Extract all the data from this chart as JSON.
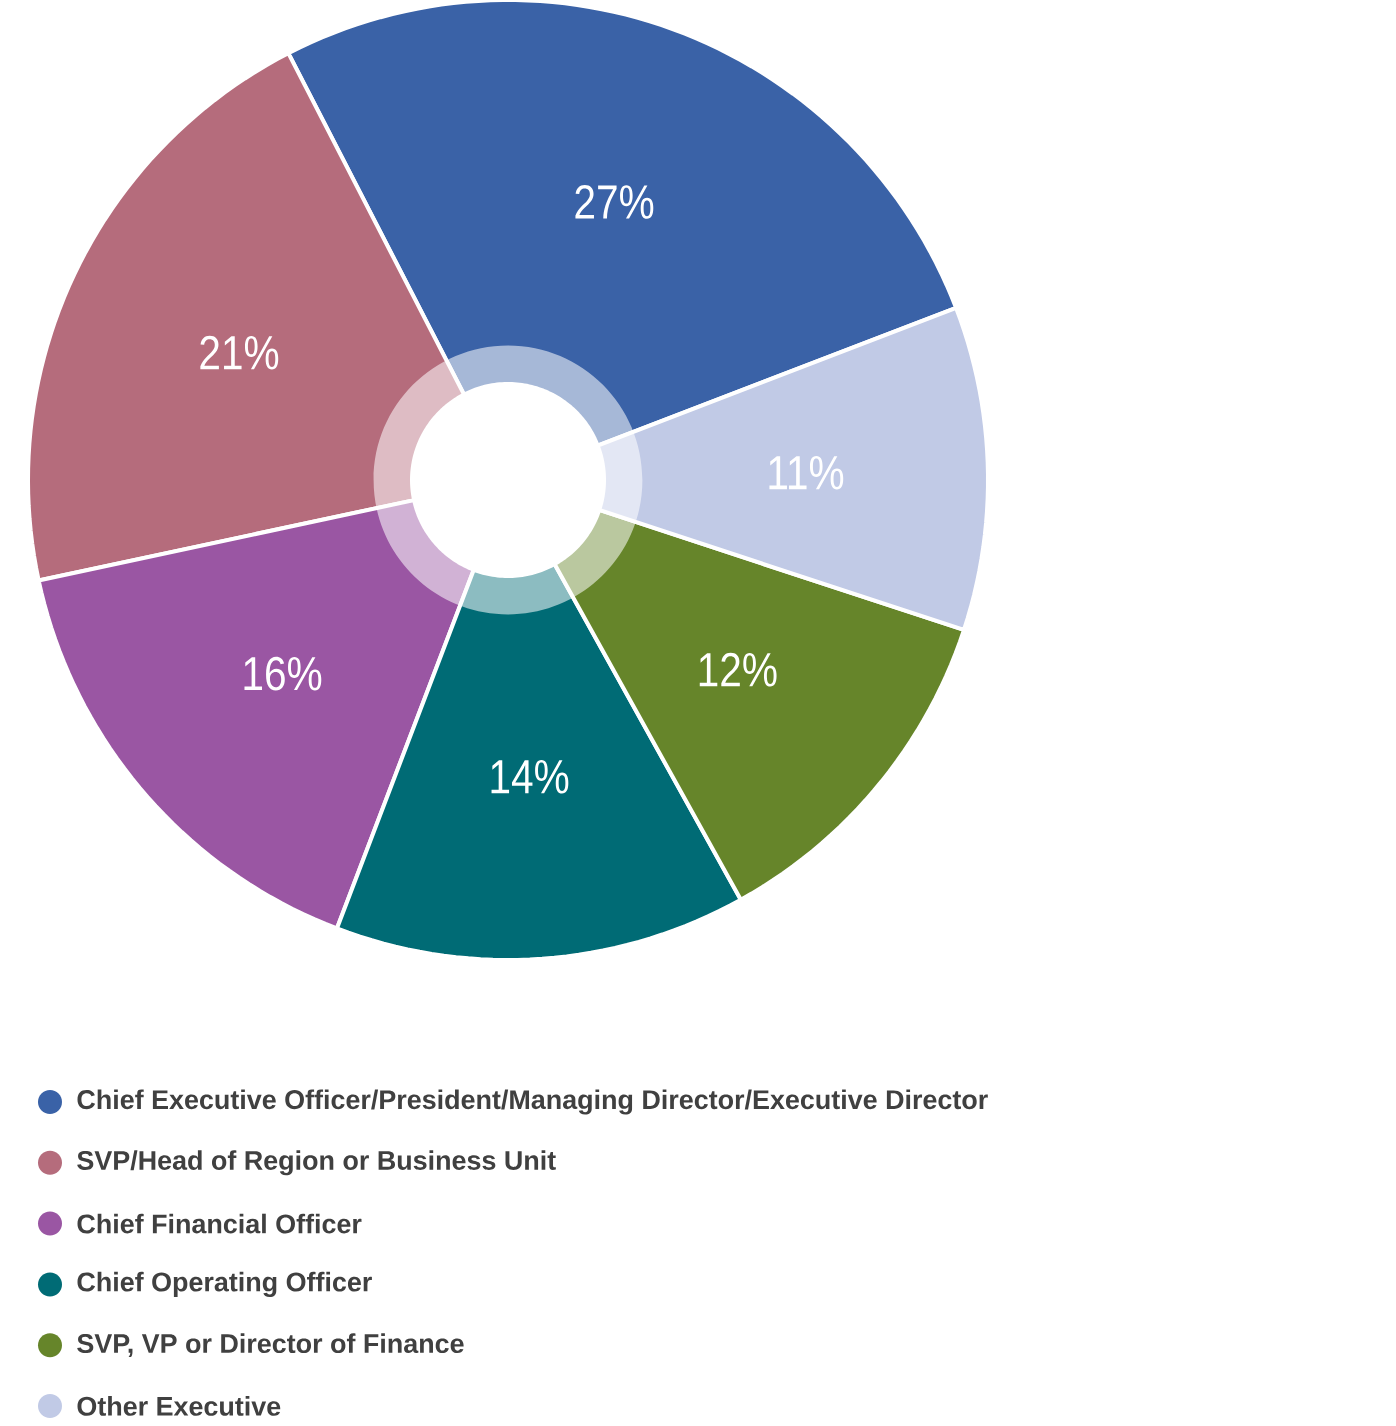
{
  "chart_data": {
    "type": "donut",
    "categories": [
      "Chief Executive Officer/President/Managing Director/Executive Director",
      "SVP/Head of Region or Business Unit",
      "Chief Financial Officer",
      "Chief Operating Officer",
      "SVP, VP or Director of Finance",
      "Other Executive"
    ],
    "values": [
      27,
      21,
      16,
      14,
      12,
      11
    ],
    "value_labels": [
      "27%",
      "21%",
      "16%",
      "14%",
      "12%",
      "11%"
    ],
    "colors": [
      "#3a62a7",
      "#b56c7c",
      "#9a56a3",
      "#006b75",
      "#66852a",
      "#c1cae6"
    ],
    "legend": "bottom"
  }
}
